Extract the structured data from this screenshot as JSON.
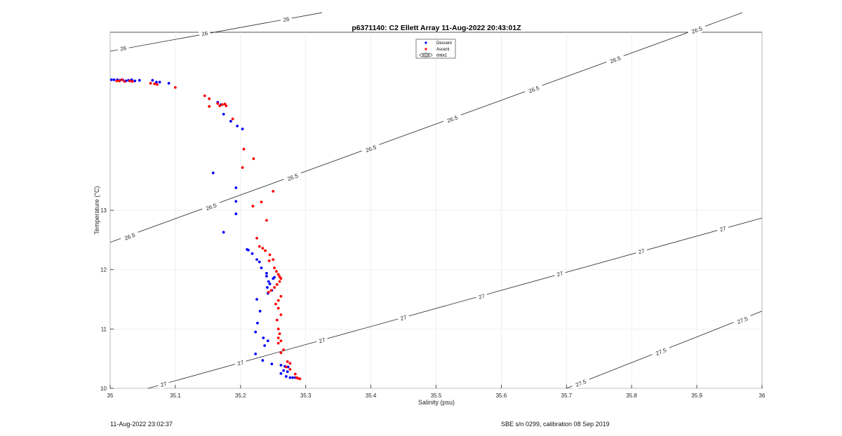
{
  "chart_data": {
    "type": "scatter",
    "title": "p6371140: C2 Ellett Array 11-Aug-2022 20:43:01Z",
    "xlabel": "Salinity (psu)",
    "ylabel": "Temperature (°C)",
    "xlim": [
      35,
      36
    ],
    "ylim": [
      10,
      16
    ],
    "xticks": [
      "35",
      "35.1",
      "35.2",
      "35.3",
      "35.4",
      "35.5",
      "35.6",
      "35.7",
      "35.8",
      "35.9",
      "36"
    ],
    "yticks": [
      "10",
      "11",
      "12",
      "13"
    ],
    "grid": true,
    "legend": {
      "position": "top-center",
      "entries": [
        "Descent",
        "Ascent",
        "data1"
      ]
    },
    "colors": {
      "descent": "#0000ff",
      "ascent": "#ff0000",
      "contour": "#262626"
    },
    "contours": [
      {
        "level": "26",
        "points": [
          [
            35,
            15.68
          ],
          [
            35.325,
            16.33
          ]
        ],
        "labels": [
          [
            35.02,
            15.73
          ],
          [
            35.145,
            15.98
          ],
          [
            35.27,
            16.22
          ]
        ]
      },
      {
        "level": "26.5",
        "points": [
          [
            35,
            12.46
          ],
          [
            35.97,
            16.33
          ]
        ],
        "labels": [
          [
            35.03,
            12.56
          ],
          [
            35.155,
            13.06
          ],
          [
            35.28,
            13.56
          ],
          [
            35.4,
            14.04
          ],
          [
            35.525,
            14.54
          ],
          [
            35.65,
            15.04
          ],
          [
            35.775,
            15.54
          ],
          [
            35.9,
            16.04
          ]
        ]
      },
      {
        "level": "27",
        "points": [
          [
            35.058,
            10
          ],
          [
            36,
            12.87
          ]
        ],
        "labels": [
          [
            35.082,
            10.07
          ],
          [
            35.2,
            10.43
          ],
          [
            35.325,
            10.81
          ],
          [
            35.45,
            11.19
          ],
          [
            35.57,
            11.55
          ],
          [
            35.69,
            11.93
          ],
          [
            35.815,
            12.31
          ],
          [
            35.94,
            12.69
          ]
        ]
      },
      {
        "level": "27.5",
        "points": [
          [
            35.7,
            10
          ],
          [
            36,
            11.3
          ]
        ],
        "labels": [
          [
            35.722,
            10.09
          ],
          [
            35.845,
            10.62
          ],
          [
            35.97,
            11.15
          ]
        ]
      }
    ],
    "series": [
      {
        "name": "Descent",
        "color": "#0000ff",
        "points": [
          [
            35.002,
            15.2
          ],
          [
            35.006,
            15.2
          ],
          [
            35.011,
            15.2
          ],
          [
            35.015,
            15.19
          ],
          [
            35.019,
            15.2
          ],
          [
            35.024,
            15.18
          ],
          [
            35.028,
            15.19
          ],
          [
            35.033,
            15.2
          ],
          [
            35.038,
            15.18
          ],
          [
            35.045,
            15.19
          ],
          [
            35.065,
            15.19
          ],
          [
            35.071,
            15.16
          ],
          [
            35.076,
            15.16
          ],
          [
            35.09,
            15.14
          ],
          [
            35.165,
            14.82
          ],
          [
            35.17,
            14.78
          ],
          [
            35.174,
            14.62
          ],
          [
            35.185,
            14.5
          ],
          [
            35.195,
            14.42
          ],
          [
            35.203,
            14.37
          ],
          [
            35.158,
            13.63
          ],
          [
            35.193,
            13.38
          ],
          [
            35.193,
            13.15
          ],
          [
            35.193,
            12.94
          ],
          [
            35.174,
            12.63
          ],
          [
            35.21,
            12.34
          ],
          [
            35.212,
            12.33
          ],
          [
            35.218,
            12.27
          ],
          [
            35.225,
            12.17
          ],
          [
            35.229,
            12.13
          ],
          [
            35.232,
            12.03
          ],
          [
            35.24,
            11.94
          ],
          [
            35.24,
            11.89
          ],
          [
            35.243,
            11.8
          ],
          [
            35.245,
            11.76
          ],
          [
            35.241,
            11.7
          ],
          [
            35.25,
            11.85
          ],
          [
            35.252,
            11.87
          ],
          [
            35.248,
            11.65
          ],
          [
            35.242,
            11.6
          ],
          [
            35.225,
            11.5
          ],
          [
            35.23,
            11.3
          ],
          [
            35.226,
            11.1
          ],
          [
            35.223,
            10.95
          ],
          [
            35.235,
            10.85
          ],
          [
            35.242,
            10.8
          ],
          [
            35.237,
            10.72
          ],
          [
            35.223,
            10.58
          ],
          [
            35.234,
            10.47
          ],
          [
            35.248,
            10.41
          ],
          [
            35.262,
            10.39
          ],
          [
            35.268,
            10.37
          ],
          [
            35.273,
            10.36
          ],
          [
            35.266,
            10.3
          ],
          [
            35.272,
            10.28
          ],
          [
            35.262,
            10.25
          ],
          [
            35.27,
            10.2
          ],
          [
            35.276,
            10.18
          ],
          [
            35.28,
            10.18
          ],
          [
            35.284,
            10.18
          ]
        ]
      },
      {
        "name": "Ascent",
        "color": "#ff0000",
        "points": [
          [
            35.01,
            15.18
          ],
          [
            35.014,
            15.18
          ],
          [
            35.018,
            15.2
          ],
          [
            35.022,
            15.17
          ],
          [
            35.03,
            15.18
          ],
          [
            35.034,
            15.17
          ],
          [
            35.062,
            15.14
          ],
          [
            35.068,
            15.13
          ],
          [
            35.072,
            15.12
          ],
          [
            35.1,
            15.07
          ],
          [
            35.145,
            14.93
          ],
          [
            35.152,
            14.88
          ],
          [
            35.152,
            14.75
          ],
          [
            35.165,
            14.8
          ],
          [
            35.168,
            14.76
          ],
          [
            35.172,
            14.78
          ],
          [
            35.176,
            14.79
          ],
          [
            35.178,
            14.76
          ],
          [
            35.188,
            14.54
          ],
          [
            35.205,
            14.03
          ],
          [
            35.22,
            13.87
          ],
          [
            35.203,
            13.72
          ],
          [
            35.25,
            13.32
          ],
          [
            35.232,
            13.14
          ],
          [
            35.219,
            13.07
          ],
          [
            35.24,
            12.83
          ],
          [
            35.225,
            12.53
          ],
          [
            35.229,
            12.39
          ],
          [
            35.234,
            12.36
          ],
          [
            35.238,
            12.32
          ],
          [
            35.245,
            12.25
          ],
          [
            35.25,
            12.17
          ],
          [
            35.244,
            12.15
          ],
          [
            35.252,
            12.03
          ],
          [
            35.255,
            11.97
          ],
          [
            35.258,
            11.92
          ],
          [
            35.26,
            11.88
          ],
          [
            35.262,
            11.85
          ],
          [
            35.26,
            11.8
          ],
          [
            35.256,
            11.75
          ],
          [
            35.252,
            11.7
          ],
          [
            35.247,
            11.65
          ],
          [
            35.243,
            11.62
          ],
          [
            35.262,
            11.55
          ],
          [
            35.258,
            11.48
          ],
          [
            35.254,
            11.42
          ],
          [
            35.258,
            11.35
          ],
          [
            35.262,
            11.24
          ],
          [
            35.256,
            11.15
          ],
          [
            35.258,
            11.0
          ],
          [
            35.26,
            10.92
          ],
          [
            35.258,
            10.85
          ],
          [
            35.262,
            10.8
          ],
          [
            35.258,
            10.76
          ],
          [
            35.266,
            10.65
          ],
          [
            35.262,
            10.6
          ],
          [
            35.272,
            10.45
          ],
          [
            35.276,
            10.42
          ],
          [
            35.27,
            10.36
          ],
          [
            35.276,
            10.32
          ],
          [
            35.284,
            10.24
          ],
          [
            35.286,
            10.18
          ],
          [
            35.288,
            10.17
          ],
          [
            35.291,
            10.16
          ]
        ]
      }
    ]
  },
  "footer": {
    "left": "11-Aug-2022 23:02:37",
    "right": "SBE s/n 0299, calibration 08 Sep 2019"
  }
}
